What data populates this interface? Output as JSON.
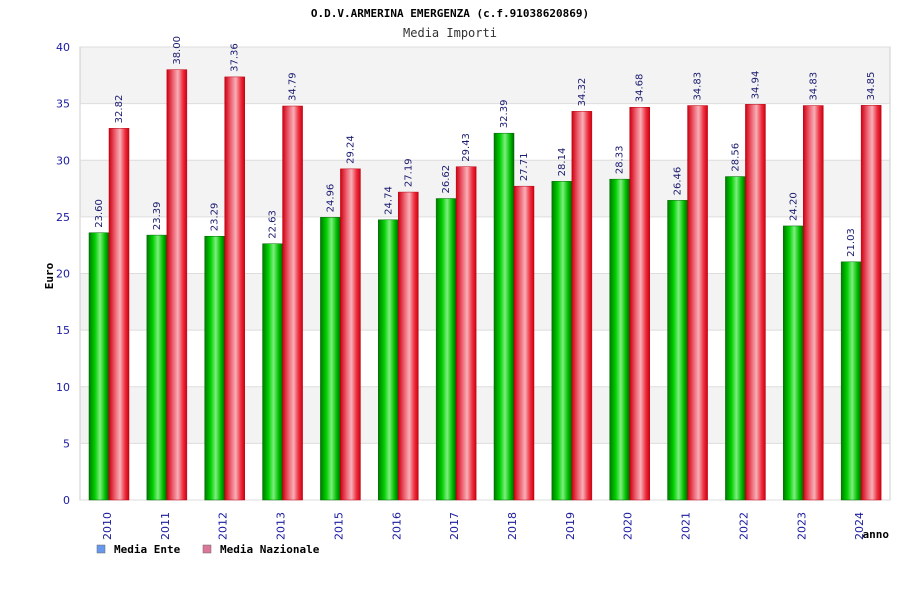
{
  "chart_data": {
    "type": "bar",
    "title": "O.D.V.ARMERINA EMERGENZA (c.f.91038620869)",
    "subtitle": "Media Importi",
    "xlabel": "anno",
    "ylabel": "Euro",
    "ylim": [
      0,
      40
    ],
    "yticks": [
      "0",
      "5",
      "10",
      "15",
      "20",
      "25",
      "30",
      "35",
      "40"
    ],
    "grid": true,
    "legend_position": "bottom-left",
    "categories": [
      "2010",
      "2011",
      "2012",
      "2013",
      "2015",
      "2016",
      "2017",
      "2018",
      "2019",
      "2020",
      "2021",
      "2022",
      "2023",
      "2024"
    ],
    "series": [
      {
        "name": "Media Ente",
        "color": "#00cc00",
        "legend_color": "#6699ee",
        "values": [
          23.6,
          23.39,
          23.29,
          22.63,
          24.96,
          24.74,
          26.62,
          32.39,
          28.14,
          28.33,
          26.46,
          28.56,
          24.2,
          21.03
        ],
        "labels": [
          "23.60",
          "23.39",
          "23.29",
          "22.63",
          "24.96",
          "24.74",
          "26.62",
          "32.39",
          "28.14",
          "28.33",
          "26.46",
          "28.56",
          "24.20",
          "21.03"
        ]
      },
      {
        "name": "Media Nazionale",
        "color": "#ee1122",
        "legend_color": "#dd7799",
        "values": [
          32.82,
          38.0,
          37.36,
          34.79,
          29.24,
          27.19,
          29.43,
          27.71,
          34.32,
          34.68,
          34.83,
          34.94,
          34.83,
          34.85
        ],
        "labels": [
          "32.82",
          "38.00",
          "37.36",
          "34.79",
          "29.24",
          "27.19",
          "29.43",
          "27.71",
          "34.32",
          "34.68",
          "34.83",
          "34.94",
          "34.83",
          "34.85"
        ]
      }
    ]
  }
}
